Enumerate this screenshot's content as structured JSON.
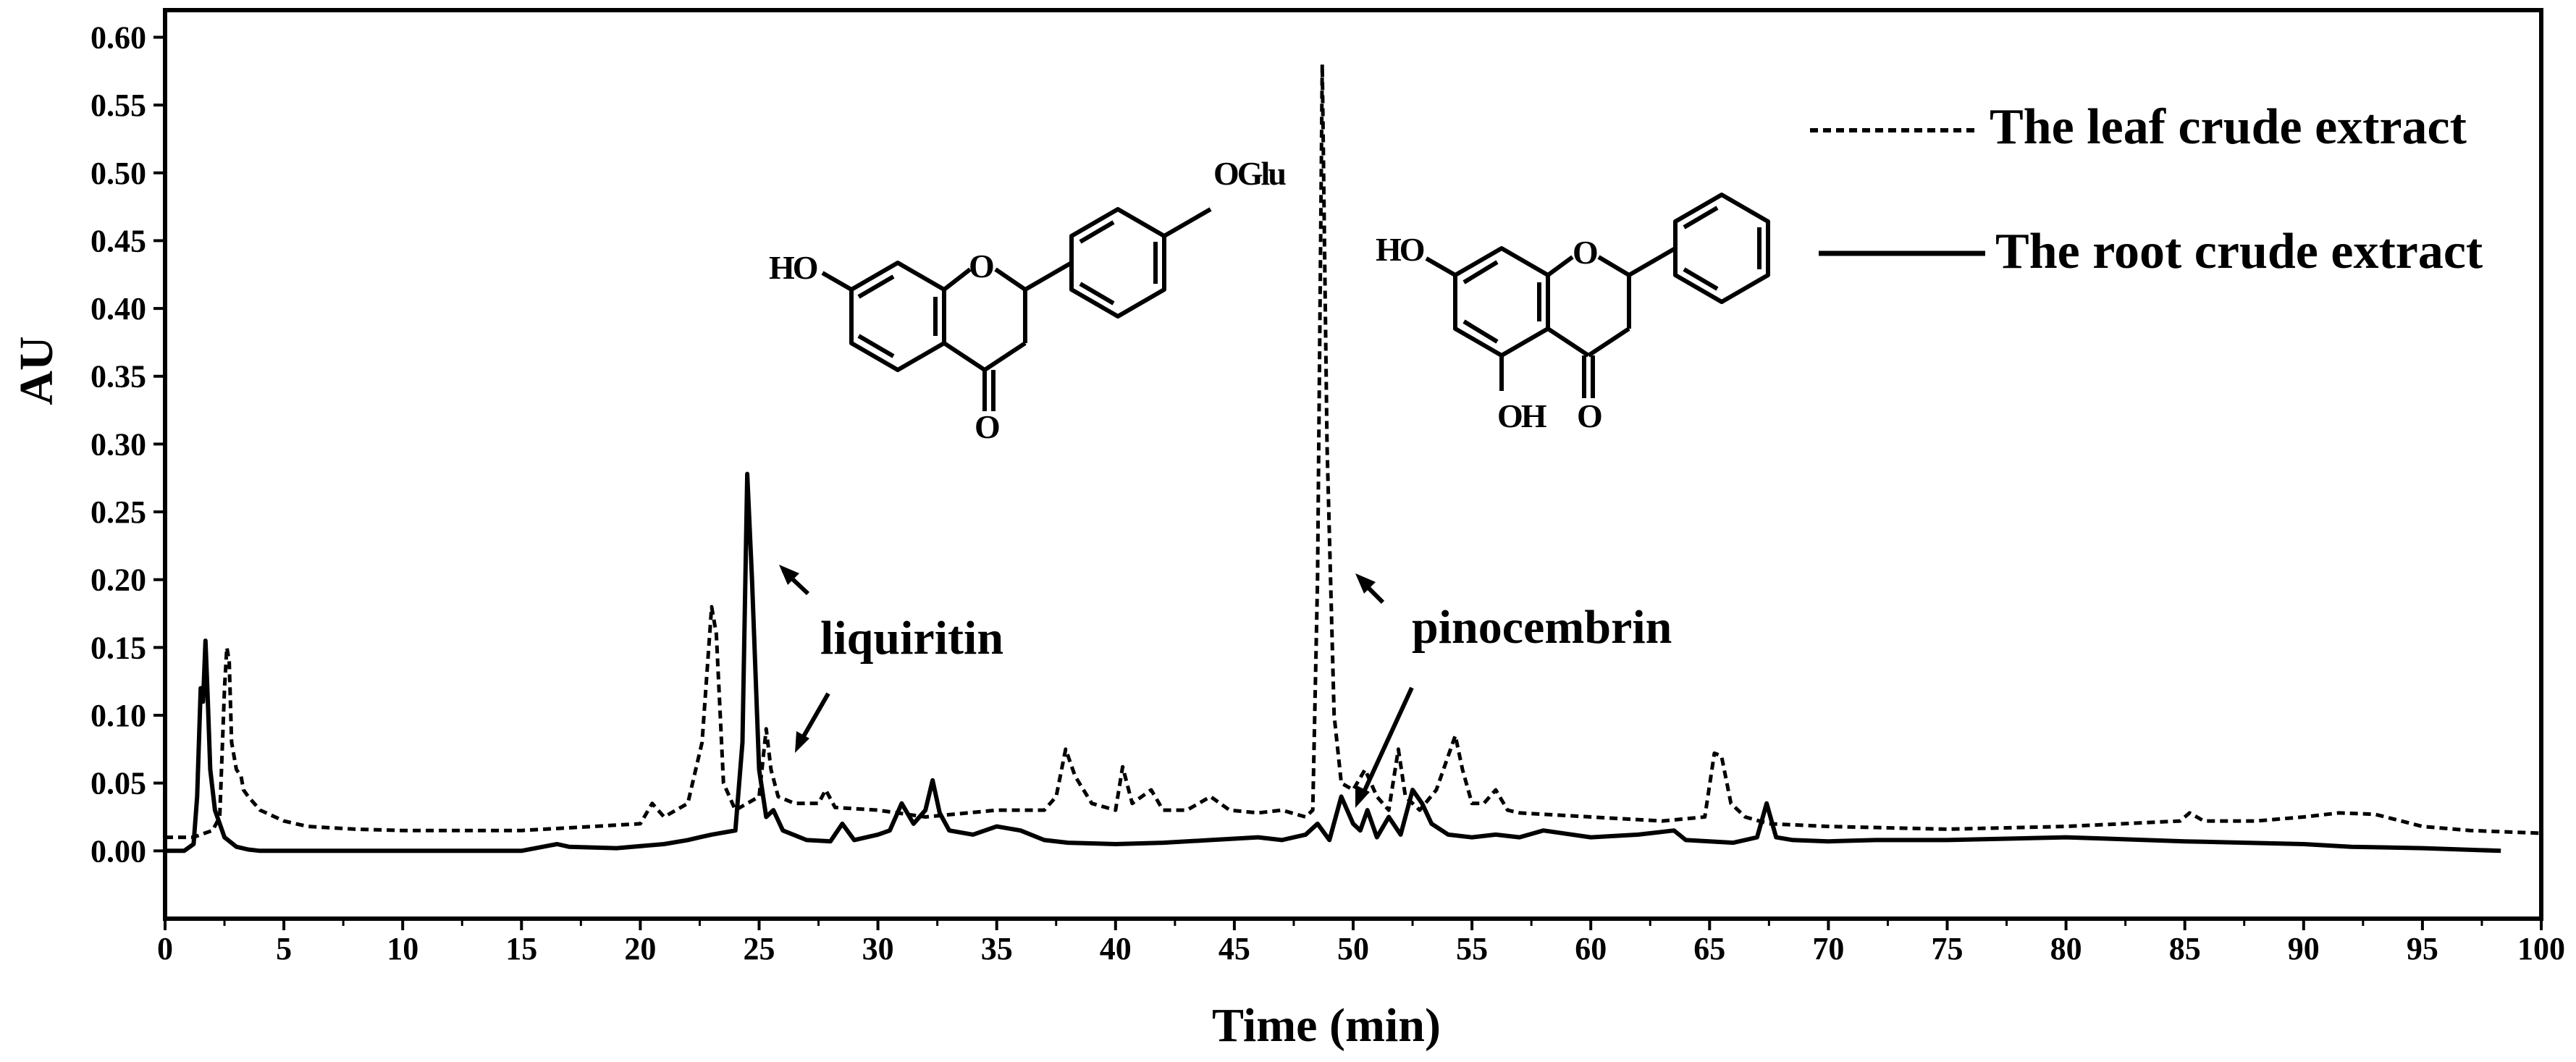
{
  "chart_data": {
    "type": "line",
    "xlabel": "Time (min)",
    "ylabel": "AU",
    "xlim": [
      0,
      100
    ],
    "ylim": [
      -0.05,
      0.62
    ],
    "x_ticks": [
      "0",
      "5",
      "10",
      "15",
      "20",
      "25",
      "30",
      "35",
      "40",
      "45",
      "50",
      "55",
      "60",
      "65",
      "70",
      "75",
      "80",
      "85",
      "90",
      "95",
      "100"
    ],
    "y_ticks": [
      "0.00",
      "0.05",
      "0.10",
      "0.15",
      "0.20",
      "0.25",
      "0.30",
      "0.35",
      "0.40",
      "0.45",
      "0.50",
      "0.55",
      "0.60"
    ],
    "legend_position": "top-right",
    "series": [
      {
        "name": "The leaf crude extract",
        "style": "dashed",
        "color": "#000000",
        "x": [
          0,
          1.2,
          1.5,
          2.0,
          2.3,
          2.5,
          2.6,
          2.7,
          2.8,
          3.0,
          3.2,
          3.3,
          3.5,
          4.0,
          5,
          6,
          8,
          10,
          15,
          20,
          20.5,
          21,
          22,
          22.6,
          23.0,
          23.2,
          23.5,
          24.0,
          25.0,
          25.3,
          25.5,
          25.8,
          26.5,
          27.5,
          27.8,
          28.2,
          30,
          32,
          35,
          37,
          37.5,
          37.9,
          38.3,
          39,
          40.0,
          40.3,
          40.7,
          41.5,
          42,
          43,
          44,
          44.8,
          46,
          47,
          48,
          48.3,
          48.5,
          48.7,
          48.9,
          49.2,
          49.5,
          50.0,
          50.5,
          51.0,
          51.5,
          51.9,
          52.2,
          52.8,
          53.5,
          54.3,
          54.6,
          55.0,
          55.5,
          56.0,
          56.5,
          57,
          60,
          63,
          64.8,
          65.2,
          65.5,
          65.9,
          66.5,
          67.5,
          70,
          75,
          80,
          84.8,
          85.2,
          85.8,
          88,
          90,
          91.5,
          93,
          95,
          97,
          100
        ],
        "values": [
          0.01,
          0.01,
          0.012,
          0.015,
          0.025,
          0.12,
          0.15,
          0.14,
          0.08,
          0.06,
          0.055,
          0.045,
          0.04,
          0.03,
          0.022,
          0.018,
          0.016,
          0.015,
          0.015,
          0.02,
          0.035,
          0.025,
          0.035,
          0.08,
          0.18,
          0.16,
          0.05,
          0.03,
          0.04,
          0.09,
          0.06,
          0.04,
          0.035,
          0.035,
          0.045,
          0.032,
          0.03,
          0.025,
          0.03,
          0.03,
          0.04,
          0.075,
          0.055,
          0.035,
          0.03,
          0.062,
          0.035,
          0.045,
          0.03,
          0.03,
          0.04,
          0.03,
          0.028,
          0.03,
          0.025,
          0.03,
          0.2,
          0.58,
          0.3,
          0.1,
          0.05,
          0.045,
          0.06,
          0.04,
          0.03,
          0.075,
          0.04,
          0.03,
          0.045,
          0.085,
          0.06,
          0.035,
          0.035,
          0.045,
          0.03,
          0.028,
          0.025,
          0.022,
          0.025,
          0.072,
          0.07,
          0.035,
          0.025,
          0.02,
          0.018,
          0.016,
          0.018,
          0.022,
          0.028,
          0.022,
          0.022,
          0.025,
          0.028,
          0.027,
          0.018,
          0.015,
          0.013
        ]
      },
      {
        "name": "The root crude extract",
        "style": "solid",
        "color": "#000000",
        "x": [
          0,
          0.8,
          1.2,
          1.35,
          1.5,
          1.6,
          1.7,
          1.8,
          1.9,
          2.1,
          2.5,
          3.0,
          3.5,
          4,
          5,
          8,
          10,
          15,
          16.5,
          17,
          19,
          21,
          22,
          22.5,
          23,
          24.0,
          24.3,
          24.5,
          24.7,
          25.0,
          25.3,
          25.6,
          26,
          27,
          28,
          28.5,
          29,
          30,
          30.5,
          31.0,
          31.5,
          32.0,
          32.3,
          32.6,
          33,
          34,
          35,
          36,
          37,
          38,
          40,
          42,
          44,
          46,
          47,
          48,
          48.5,
          49,
          49.5,
          50,
          50.3,
          50.6,
          51,
          51.5,
          52,
          52.5,
          52.9,
          53.3,
          54,
          55,
          56,
          57,
          58,
          60,
          62,
          63.5,
          64,
          65,
          66,
          67,
          67.4,
          67.8,
          68.5,
          70,
          72,
          75,
          80,
          85,
          90,
          92,
          95,
          98.3
        ],
        "values": [
          0.0,
          0.0,
          0.005,
          0.04,
          0.12,
          0.11,
          0.155,
          0.11,
          0.06,
          0.03,
          0.01,
          0.003,
          0.001,
          0.0,
          0.0,
          0.0,
          0.0,
          0.0,
          0.005,
          0.003,
          0.002,
          0.005,
          0.008,
          0.01,
          0.012,
          0.015,
          0.08,
          0.278,
          0.2,
          0.06,
          0.025,
          0.03,
          0.015,
          0.008,
          0.007,
          0.02,
          0.008,
          0.012,
          0.015,
          0.035,
          0.02,
          0.03,
          0.052,
          0.028,
          0.015,
          0.012,
          0.018,
          0.015,
          0.008,
          0.006,
          0.005,
          0.006,
          0.008,
          0.01,
          0.008,
          0.012,
          0.02,
          0.008,
          0.04,
          0.02,
          0.015,
          0.03,
          0.01,
          0.025,
          0.012,
          0.045,
          0.035,
          0.02,
          0.012,
          0.01,
          0.012,
          0.01,
          0.015,
          0.01,
          0.012,
          0.015,
          0.008,
          0.007,
          0.006,
          0.01,
          0.035,
          0.01,
          0.008,
          0.007,
          0.008,
          0.008,
          0.01,
          0.007,
          0.005,
          0.003,
          0.002,
          0.0
        ]
      }
    ],
    "annotations": {
      "liquiritin": "liquiritin",
      "pinocembrin": "pinocembrin"
    },
    "structure_labels": {
      "liquiritin_ho": "HO",
      "liquiritin_ring_o": "O",
      "liquiritin_carbonyl": "O",
      "liquiritin_oglu": "OGlu",
      "pinocembrin_ho": "HO",
      "pinocembrin_oh": "OH",
      "pinocembrin_ring_o": "O",
      "pinocembrin_carbonyl": "O"
    }
  }
}
